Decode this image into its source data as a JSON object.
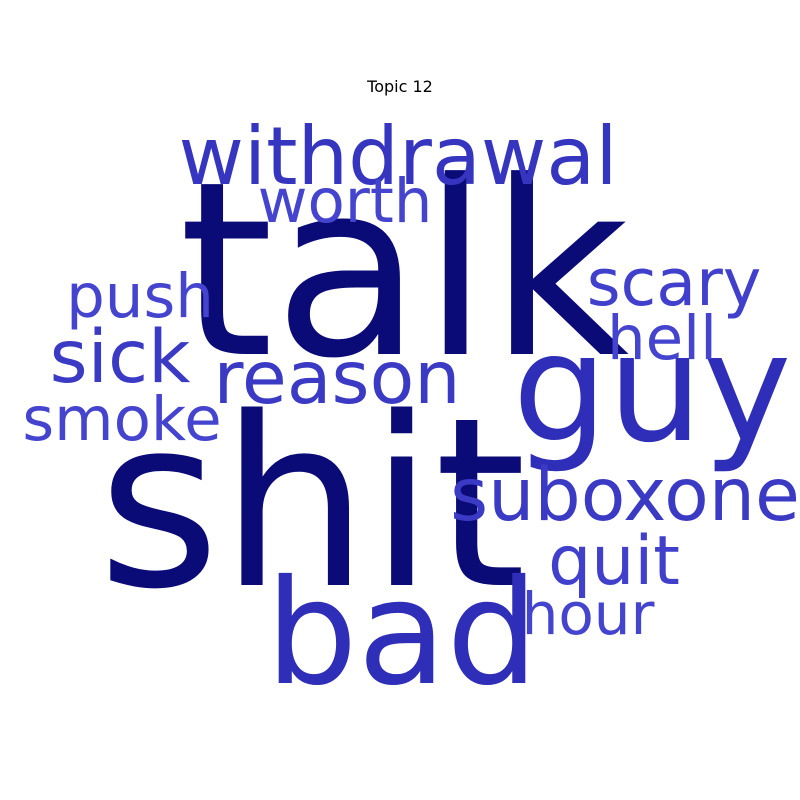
{
  "chart_data": {
    "type": "wordcloud",
    "title": "Topic 12",
    "words": [
      {
        "text": "talk",
        "weight": 1.0,
        "color": "#0b0b78"
      },
      {
        "text": "shit",
        "weight": 0.97,
        "color": "#0b0b78"
      },
      {
        "text": "guy",
        "weight": 0.62,
        "color": "#2e2eb8"
      },
      {
        "text": "bad",
        "weight": 0.6,
        "color": "#2e2eb8"
      },
      {
        "text": "withdrawal",
        "weight": 0.33,
        "color": "#3535c0"
      },
      {
        "text": "reason",
        "weight": 0.3,
        "color": "#3a3ac4"
      },
      {
        "text": "suboxone",
        "weight": 0.3,
        "color": "#3a3ac4"
      },
      {
        "text": "sick",
        "weight": 0.3,
        "color": "#3a3ac4"
      },
      {
        "text": "quit",
        "weight": 0.28,
        "color": "#4040cc"
      },
      {
        "text": "scary",
        "weight": 0.27,
        "color": "#4040cc"
      },
      {
        "text": "smoke",
        "weight": 0.25,
        "color": "#4444cf"
      },
      {
        "text": "worth",
        "weight": 0.25,
        "color": "#4444cf"
      },
      {
        "text": "push",
        "weight": 0.25,
        "color": "#4444cf"
      },
      {
        "text": "hell",
        "weight": 0.25,
        "color": "#4444cf"
      },
      {
        "text": "hour",
        "weight": 0.24,
        "color": "#4444cf"
      }
    ]
  }
}
